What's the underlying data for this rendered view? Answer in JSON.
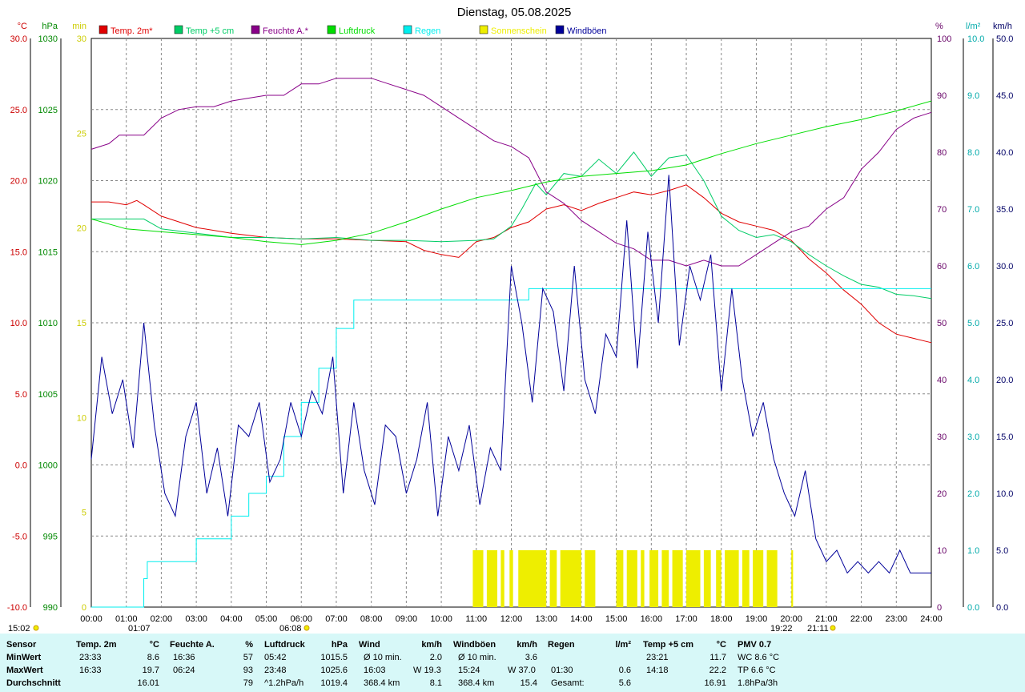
{
  "chart_data": {
    "type": "line",
    "title": "Dienstag, 05.08.2025",
    "xlabel": "",
    "x_ticks": [
      "00:00",
      "01:00",
      "02:00",
      "03:00",
      "04:00",
      "05:00",
      "06:00",
      "07:00",
      "08:00",
      "09:00",
      "10:00",
      "11:00",
      "12:00",
      "13:00",
      "14:00",
      "15:00",
      "16:00",
      "17:00",
      "18:00",
      "19:00",
      "20:00",
      "21:00",
      "22:00",
      "23:00",
      "24:00"
    ],
    "grid": true,
    "axes": {
      "temp_c": {
        "unit": "°C",
        "color": "#cc0000",
        "range": [
          -10,
          30
        ],
        "ticks": [
          "30.0",
          "25.0",
          "20.0",
          "15.0",
          "10.0",
          "5.0",
          "0.0",
          "-5.0",
          "-10.0"
        ]
      },
      "pressure_hpa": {
        "unit": "hPa",
        "color": "#008800",
        "range": [
          990,
          1030
        ],
        "ticks": [
          "1030",
          "1025",
          "1020",
          "1015",
          "1010",
          "1005",
          "1000",
          "995",
          "990"
        ]
      },
      "sunshine_min": {
        "unit": "min",
        "color": "#cccc00",
        "range": [
          0,
          30
        ],
        "ticks": [
          "30",
          "25",
          "20",
          "15",
          "10",
          "5",
          "0"
        ]
      },
      "humidity_pct": {
        "unit": "%",
        "color": "#660066",
        "range": [
          0,
          100
        ],
        "ticks": [
          "100",
          "90",
          "80",
          "70",
          "60",
          "50",
          "40",
          "30",
          "20",
          "10",
          "0"
        ]
      },
      "rain_lm2": {
        "unit": "l/m²",
        "color": "#00aaaa",
        "range": [
          0,
          10
        ],
        "ticks": [
          "10.0",
          "9.0",
          "8.0",
          "7.0",
          "6.0",
          "5.0",
          "4.0",
          "3.0",
          "2.0",
          "1.0",
          "0.0"
        ]
      },
      "wind_kmh": {
        "unit": "km/h",
        "color": "#000066",
        "range": [
          0,
          50
        ],
        "ticks": [
          "50.0",
          "45.0",
          "40.0",
          "35.0",
          "30.0",
          "25.0",
          "20.0",
          "15.0",
          "10.0",
          "5.0",
          "0.0"
        ]
      }
    },
    "legend": [
      {
        "label": "Temp. 2m*",
        "color": "#e00000"
      },
      {
        "label": "Temp +5 cm",
        "color": "#00cc66"
      },
      {
        "label": "Feuchte A.*",
        "color": "#880088"
      },
      {
        "label": "Luftdruck",
        "color": "#00dd00"
      },
      {
        "label": "Regen",
        "color": "#00eeee"
      },
      {
        "label": "Sonnenschein",
        "color": "#eeee00"
      },
      {
        "label": "Windböen",
        "color": "#000099"
      }
    ],
    "series": [
      {
        "name": "Temp. 2m*",
        "axis": "temp_c",
        "color": "#e00000",
        "x": [
          0,
          0.5,
          1,
          1.3,
          1.5,
          2,
          3,
          4,
          5,
          6,
          7,
          8,
          9,
          9.5,
          10,
          10.5,
          11,
          11.5,
          12,
          12.5,
          13,
          13.5,
          14,
          14.5,
          15,
          15.5,
          16,
          16.5,
          17,
          17.5,
          18,
          18.5,
          19,
          19.5,
          20,
          20.5,
          21,
          21.5,
          22,
          22.5,
          23,
          23.5,
          24
        ],
        "y": [
          18.5,
          18.5,
          18.3,
          18.6,
          18.3,
          17.5,
          16.7,
          16.3,
          16.0,
          15.9,
          15.9,
          15.8,
          15.7,
          15.1,
          14.8,
          14.6,
          15.7,
          16.0,
          16.7,
          17.1,
          18.0,
          18.3,
          17.9,
          18.4,
          18.8,
          19.2,
          19.0,
          19.3,
          19.7,
          18.8,
          17.7,
          17.1,
          16.8,
          16.5,
          15.8,
          14.5,
          13.5,
          12.3,
          11.3,
          10.0,
          9.2,
          8.9,
          8.6
        ]
      },
      {
        "name": "Temp +5 cm",
        "axis": "temp_c",
        "color": "#00cc66",
        "x": [
          0,
          1,
          1.5,
          2,
          3,
          4,
          5,
          6,
          7,
          8,
          9,
          10,
          11,
          11.5,
          12,
          12.3,
          12.7,
          13,
          13.5,
          14,
          14.5,
          15,
          15.5,
          16,
          16.5,
          17,
          17.5,
          18,
          18.5,
          19,
          19.5,
          20,
          20.5,
          21,
          21.5,
          22,
          22.5,
          23,
          23.5,
          24
        ],
        "y": [
          17.3,
          17.3,
          17.3,
          16.6,
          16.3,
          16.0,
          16.0,
          15.9,
          16.0,
          15.8,
          15.8,
          15.7,
          15.8,
          15.9,
          16.8,
          18.0,
          19.8,
          19.0,
          20.5,
          20.3,
          21.5,
          20.5,
          22.0,
          20.3,
          21.6,
          21.8,
          20.0,
          17.5,
          16.5,
          16.0,
          16.2,
          15.7,
          14.8,
          14.0,
          13.3,
          12.7,
          12.5,
          12.0,
          11.9,
          11.7
        ]
      },
      {
        "name": "Feuchte A.*",
        "axis": "humidity_pct",
        "color": "#880088",
        "x": [
          0,
          0.5,
          0.8,
          1.5,
          2,
          2.5,
          3,
          3.5,
          4,
          4.5,
          5,
          5.5,
          6,
          6.5,
          7,
          7.5,
          8,
          8.5,
          9,
          9.5,
          10,
          10.5,
          11,
          11.5,
          12,
          12.5,
          13,
          13.5,
          14,
          14.5,
          15,
          15.5,
          16,
          16.5,
          17,
          17.5,
          18,
          18.5,
          19,
          19.5,
          20,
          20.5,
          21,
          21.5,
          22,
          22.5,
          23,
          23.5,
          24
        ],
        "y": [
          80.5,
          81.5,
          83,
          83,
          86,
          87.5,
          88,
          88,
          89,
          89.5,
          90,
          90,
          92,
          92,
          93,
          93,
          93,
          92,
          91,
          90,
          88,
          86,
          84,
          82,
          81,
          79,
          73,
          71,
          68,
          66,
          64,
          63,
          61,
          61,
          60,
          61,
          60,
          60,
          62,
          64,
          66,
          67,
          70,
          72,
          77,
          80,
          84,
          86,
          87
        ]
      },
      {
        "name": "Luftdruck",
        "axis": "pressure_hpa",
        "color": "#00dd00",
        "x": [
          0,
          1,
          2,
          3,
          4,
          5,
          6,
          7,
          8,
          9,
          10,
          11,
          12,
          13,
          14,
          15,
          16,
          17,
          18,
          19,
          20,
          21,
          22,
          23,
          24
        ],
        "y": [
          1017.3,
          1016.6,
          1016.4,
          1016.2,
          1016.0,
          1015.7,
          1015.5,
          1015.8,
          1016.3,
          1017.1,
          1018.0,
          1018.8,
          1019.3,
          1019.9,
          1020.3,
          1020.5,
          1020.7,
          1021.1,
          1021.9,
          1022.6,
          1023.2,
          1023.8,
          1024.3,
          1024.9,
          1025.6
        ]
      },
      {
        "name": "Regen",
        "axis": "rain_lm2",
        "color": "#00eeee",
        "x": [
          0,
          1.4,
          1.5,
          1.6,
          2,
          3,
          4,
          4.5,
          5,
          5.5,
          6,
          6.5,
          7,
          7.5,
          8,
          9,
          10,
          11,
          12,
          12.3,
          12.5,
          13,
          14,
          15,
          16,
          17,
          18,
          19,
          20,
          21,
          22,
          23,
          24
        ],
        "y": [
          0,
          0,
          0.5,
          0.8,
          0.8,
          1.2,
          1.6,
          2.0,
          2.3,
          3.0,
          3.6,
          4.2,
          4.9,
          5.4,
          5.4,
          5.4,
          5.4,
          5.4,
          5.4,
          5.4,
          5.6,
          5.6,
          5.6,
          5.6,
          5.6,
          5.6,
          5.6,
          5.6,
          5.6,
          5.6,
          5.6,
          5.6,
          5.6
        ]
      },
      {
        "name": "Sonnenschein",
        "axis": "sunshine_min",
        "color": "#eeee00",
        "intervals": [
          [
            10.9,
            11.2
          ],
          [
            11.3,
            11.6
          ],
          [
            11.7,
            11.8
          ],
          [
            11.95,
            12.05
          ],
          [
            12.2,
            13.0
          ],
          [
            13.1,
            13.3
          ],
          [
            13.4,
            14.0
          ],
          [
            14.1,
            14.4
          ],
          [
            15.0,
            15.2
          ],
          [
            15.3,
            15.6
          ],
          [
            15.7,
            15.8
          ],
          [
            15.95,
            16.2
          ],
          [
            16.3,
            16.5
          ],
          [
            16.6,
            16.9
          ],
          [
            17.0,
            17.4
          ],
          [
            17.5,
            17.7
          ],
          [
            17.85,
            18.0
          ],
          [
            18.1,
            18.5
          ],
          [
            18.6,
            18.8
          ],
          [
            18.9,
            19.2
          ],
          [
            19.3,
            19.6
          ],
          [
            20.0,
            20.05
          ]
        ],
        "level": 3
      },
      {
        "name": "Windböen",
        "axis": "wind_kmh",
        "color": "#000099",
        "x": [
          0,
          0.3,
          0.6,
          0.9,
          1.2,
          1.5,
          1.8,
          2.1,
          2.4,
          2.7,
          3.0,
          3.3,
          3.6,
          3.9,
          4.2,
          4.5,
          4.8,
          5.1,
          5.4,
          5.7,
          6.0,
          6.3,
          6.6,
          6.9,
          7.2,
          7.5,
          7.8,
          8.1,
          8.4,
          8.7,
          9.0,
          9.3,
          9.6,
          9.9,
          10.2,
          10.5,
          10.8,
          11.1,
          11.4,
          11.7,
          12.0,
          12.3,
          12.6,
          12.9,
          13.2,
          13.5,
          13.8,
          14.1,
          14.4,
          14.7,
          15.0,
          15.3,
          15.6,
          15.9,
          16.2,
          16.5,
          16.8,
          17.1,
          17.4,
          17.7,
          18.0,
          18.3,
          18.6,
          18.9,
          19.2,
          19.5,
          19.8,
          20.1,
          20.4,
          20.7,
          21.0,
          21.3,
          21.6,
          21.9,
          22.2,
          22.5,
          22.8,
          23.1,
          23.4,
          23.7,
          24.0
        ],
        "y": [
          13,
          22,
          17,
          20,
          14,
          25,
          16,
          10,
          8,
          15,
          18,
          10,
          14,
          8,
          16,
          15,
          18,
          11,
          13,
          18,
          15,
          19,
          17,
          22,
          10,
          18,
          12,
          9,
          16,
          15,
          10,
          13,
          18,
          8,
          15,
          12,
          16,
          9,
          14,
          12,
          30,
          25,
          18,
          28,
          26,
          19,
          30,
          20,
          17,
          24,
          22,
          34,
          21,
          33,
          25,
          38,
          23,
          30,
          27,
          31,
          19,
          28,
          20,
          15,
          18,
          13,
          10,
          8,
          12,
          6,
          4,
          5,
          3,
          4,
          3,
          4,
          3,
          5,
          3,
          3,
          3
        ]
      }
    ],
    "sun_times": {
      "sunrise": "06:08",
      "sunset": "21:11"
    },
    "markers": {
      "left_sun": "15:02",
      "tmin_time": "01:07",
      "tmax_time": "19:22"
    }
  },
  "stats": {
    "sensor": {
      "header": "Sensor",
      "rows": [
        "MinWert",
        "MaxWert",
        "Durchschnitt"
      ]
    },
    "temp2m": {
      "header": "Temp. 2m",
      "unit": "°C",
      "rows": [
        [
          "23:33",
          "8.6"
        ],
        [
          "16:33",
          "19.7"
        ],
        [
          "",
          "16.01"
        ]
      ]
    },
    "feuchte": {
      "header": "Feuchte A.",
      "unit": "%",
      "rows": [
        [
          "16:36",
          "57"
        ],
        [
          "06:24",
          "93"
        ],
        [
          "",
          "79"
        ]
      ]
    },
    "luftdruck": {
      "header": "Luftdruck",
      "unit": "hPa",
      "rows": [
        [
          "05:42",
          "1015.5"
        ],
        [
          "23:48",
          "1025.6"
        ],
        [
          "^1.2hPa/h",
          "1019.4"
        ]
      ]
    },
    "wind": {
      "header": "Wind",
      "unit": "km/h",
      "rows": [
        [
          "Ø 10 min.",
          "",
          "2.0"
        ],
        [
          "16:03",
          "W 19.3",
          ""
        ],
        [
          "368.4 km",
          "",
          "8.1"
        ]
      ]
    },
    "windboeen": {
      "header": "Windböen",
      "unit": "km/h",
      "rows": [
        [
          "Ø 10 min.",
          "",
          "3.6"
        ],
        [
          "15:24",
          "W 37.0",
          ""
        ],
        [
          "368.4 km",
          "",
          "15.4"
        ]
      ]
    },
    "regen": {
      "header": "Regen",
      "unit": "l/m²",
      "rows": [
        [
          "",
          ""
        ],
        [
          "01:30",
          "0.6"
        ],
        [
          "Gesamt:",
          "5.6"
        ]
      ]
    },
    "temp5": {
      "header": "Temp +5 cm",
      "unit": "°C",
      "rows": [
        [
          "23:21",
          "11.7"
        ],
        [
          "14:18",
          "22.2"
        ],
        [
          "",
          "16.91"
        ]
      ]
    },
    "pmv": {
      "header": "PMV 0.7",
      "rows": [
        "WC 8.6 °C",
        "TP 6.6 °C",
        "1.8hPa/3h"
      ]
    }
  }
}
